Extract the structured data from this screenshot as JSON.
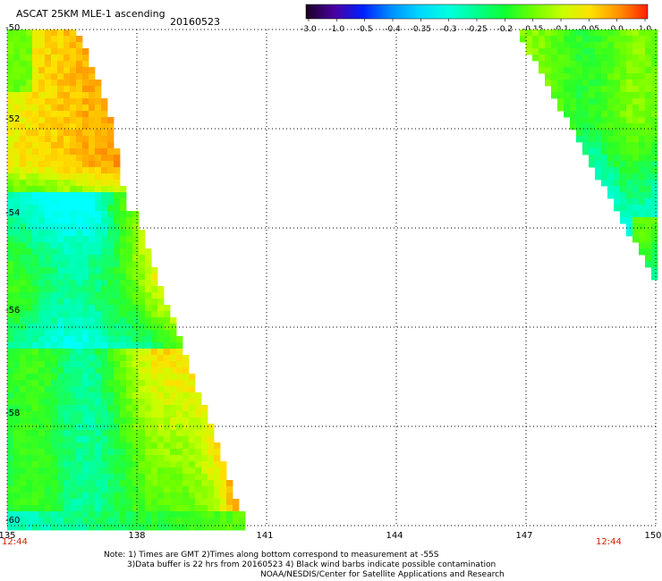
{
  "header": {
    "title": "ASCAT 25KM MLE-1 ascending",
    "date": "20160523"
  },
  "colorbar": {
    "labels": [
      "-3.0",
      "-1.0",
      "-0.5",
      "-0.4",
      "-0.35",
      "-0.3",
      "-0.25",
      "-0.2",
      "-0.15",
      "-0.1",
      "-0.05",
      "0.0",
      "1.0"
    ],
    "colors": [
      "#1a0022",
      "#4a00a0",
      "#0020ff",
      "#0090ff",
      "#00d8ff",
      "#00ffe0",
      "#00ff90",
      "#10ff30",
      "#70ff00",
      "#c8ff00",
      "#ffe000",
      "#ff9000",
      "#ff2000"
    ]
  },
  "axes": {
    "lat_labels": [
      "-50",
      "-52",
      "-54",
      "-56",
      "-58",
      "-60"
    ],
    "lon_labels": [
      "135",
      "138",
      "141",
      "144",
      "147",
      "150"
    ],
    "lat_range": [
      -60,
      -50
    ],
    "lon_range": [
      135,
      150
    ]
  },
  "times": {
    "left": "12:44",
    "right": "12:44"
  },
  "notes": {
    "line1": "Note: 1) Times are GMT 2)Times along bottom correspond to measurement at -55S",
    "line2": "3)Data buffer is 22 hrs from 20160523 4) Black wind barbs indicate possible contamination",
    "line3": "NOAA/NESDIS/Center for Satellite Applications and Research"
  }
}
